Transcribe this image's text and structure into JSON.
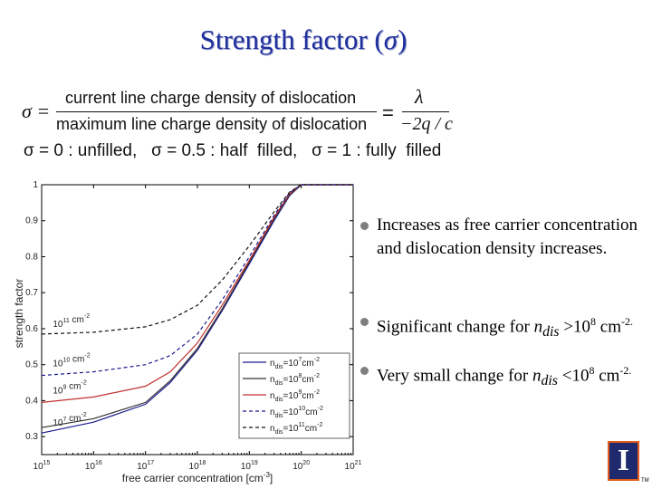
{
  "title": {
    "text": "Strength factor (",
    "sigma": "σ",
    "close": ")"
  },
  "equation1": {
    "lhs": "σ =",
    "numerator": "current line charge density of dislocation",
    "denominator": "maximum line charge density of dislocation",
    "equals": "=",
    "rhs_numerator": "λ",
    "rhs_denominator": "−2q / c"
  },
  "equation2": "σ = 0 : unfilled,   σ = 0.5 : half  filled,   σ = 1 : fully  filled",
  "bullets": [
    {
      "text": "Increases as free carrier concentration and dislocation density increases."
    },
    {
      "prefix": "Significant change for ",
      "var": "n",
      "sub": "dis",
      "mid": " >10",
      "sup": "8",
      "unit": " cm",
      "unit_sup": "-2."
    },
    {
      "prefix": "Very small change for ",
      "var": "n",
      "sub": "dis",
      "mid": " <10",
      "sup": "8",
      "unit": " cm",
      "unit_sup": "-2."
    }
  ],
  "chart_data": {
    "type": "line",
    "xlabel": "free carrier concentration [cm-3]",
    "ylabel": "strength factor",
    "xscale": "log",
    "xlim": [
      1000000000000000.0,
      1e+21
    ],
    "ylim": [
      0.25,
      1
    ],
    "x_ticks": [
      "10^15",
      "10^16",
      "10^17",
      "10^18",
      "10^19",
      "10^20",
      "10^21"
    ],
    "y_ticks": [
      "0.3",
      "0.4",
      "0.5",
      "0.6",
      "0.7",
      "0.8",
      "0.9",
      "1"
    ],
    "legend_position": "bottom-right",
    "series": [
      {
        "name": "ndis=10^7cm-2",
        "color": "#1b1b8f",
        "dash": "solid",
        "x": [
          1000000000000000.0,
          1e+16,
          1e+17,
          3e+17,
          1e+18,
          3e+18,
          1e+19,
          3e+19,
          6e+19,
          1e+20,
          1e+21
        ],
        "y": [
          0.31,
          0.34,
          0.39,
          0.45,
          0.54,
          0.65,
          0.78,
          0.9,
          0.97,
          1.0,
          1.0
        ]
      },
      {
        "name": "ndis=10^8cm-2",
        "color": "#333333",
        "dash": "solid",
        "x": [
          1000000000000000.0,
          1e+16,
          1e+17,
          3e+17,
          1e+18,
          3e+18,
          1e+19,
          3e+19,
          6e+19,
          1e+20,
          1e+21
        ],
        "y": [
          0.325,
          0.35,
          0.395,
          0.455,
          0.545,
          0.655,
          0.785,
          0.905,
          0.972,
          1.0,
          1.0
        ]
      },
      {
        "name": "ndis=10^9cm-2",
        "color": "#c03030",
        "dash": "solid",
        "x": [
          1000000000000000.0,
          1e+16,
          1e+17,
          3e+17,
          1e+18,
          3e+18,
          1e+19,
          3e+19,
          6e+19,
          1e+20,
          1e+21
        ],
        "y": [
          0.395,
          0.41,
          0.44,
          0.48,
          0.56,
          0.665,
          0.79,
          0.91,
          0.975,
          1.0,
          1.0
        ]
      },
      {
        "name": "ndis=10^10cm-2",
        "color": "#1b1b8f",
        "dash": "dashed",
        "x": [
          1000000000000000.0,
          1e+16,
          1e+17,
          3e+17,
          1e+18,
          3e+18,
          1e+19,
          3e+19,
          6e+19,
          1e+20,
          1e+21
        ],
        "y": [
          0.47,
          0.48,
          0.5,
          0.525,
          0.585,
          0.68,
          0.8,
          0.915,
          0.978,
          1.0,
          1.0
        ]
      },
      {
        "name": "ndis=10^11cm-2",
        "color": "#111111",
        "dash": "dashed",
        "x": [
          1000000000000000.0,
          1e+16,
          1e+17,
          3e+17,
          1e+18,
          3e+18,
          1e+19,
          3e+19,
          6e+19,
          1e+20,
          1e+21
        ],
        "y": [
          0.585,
          0.59,
          0.605,
          0.625,
          0.665,
          0.735,
          0.83,
          0.925,
          0.98,
          1.0,
          1.0
        ]
      }
    ],
    "annotations": [
      {
        "text": "10^11 cm-2",
        "x": 1100000000000000.0,
        "y": 0.6
      },
      {
        "text": "10^10 cm-2",
        "x": 1100000000000000.0,
        "y": 0.49
      },
      {
        "text": "10^9 cm-2",
        "x": 1100000000000000.0,
        "y": 0.415
      },
      {
        "text": "10^7 cm-2",
        "x": 1100000000000000.0,
        "y": 0.325
      }
    ]
  },
  "logo": {
    "text": "I",
    "tm": "TM"
  }
}
